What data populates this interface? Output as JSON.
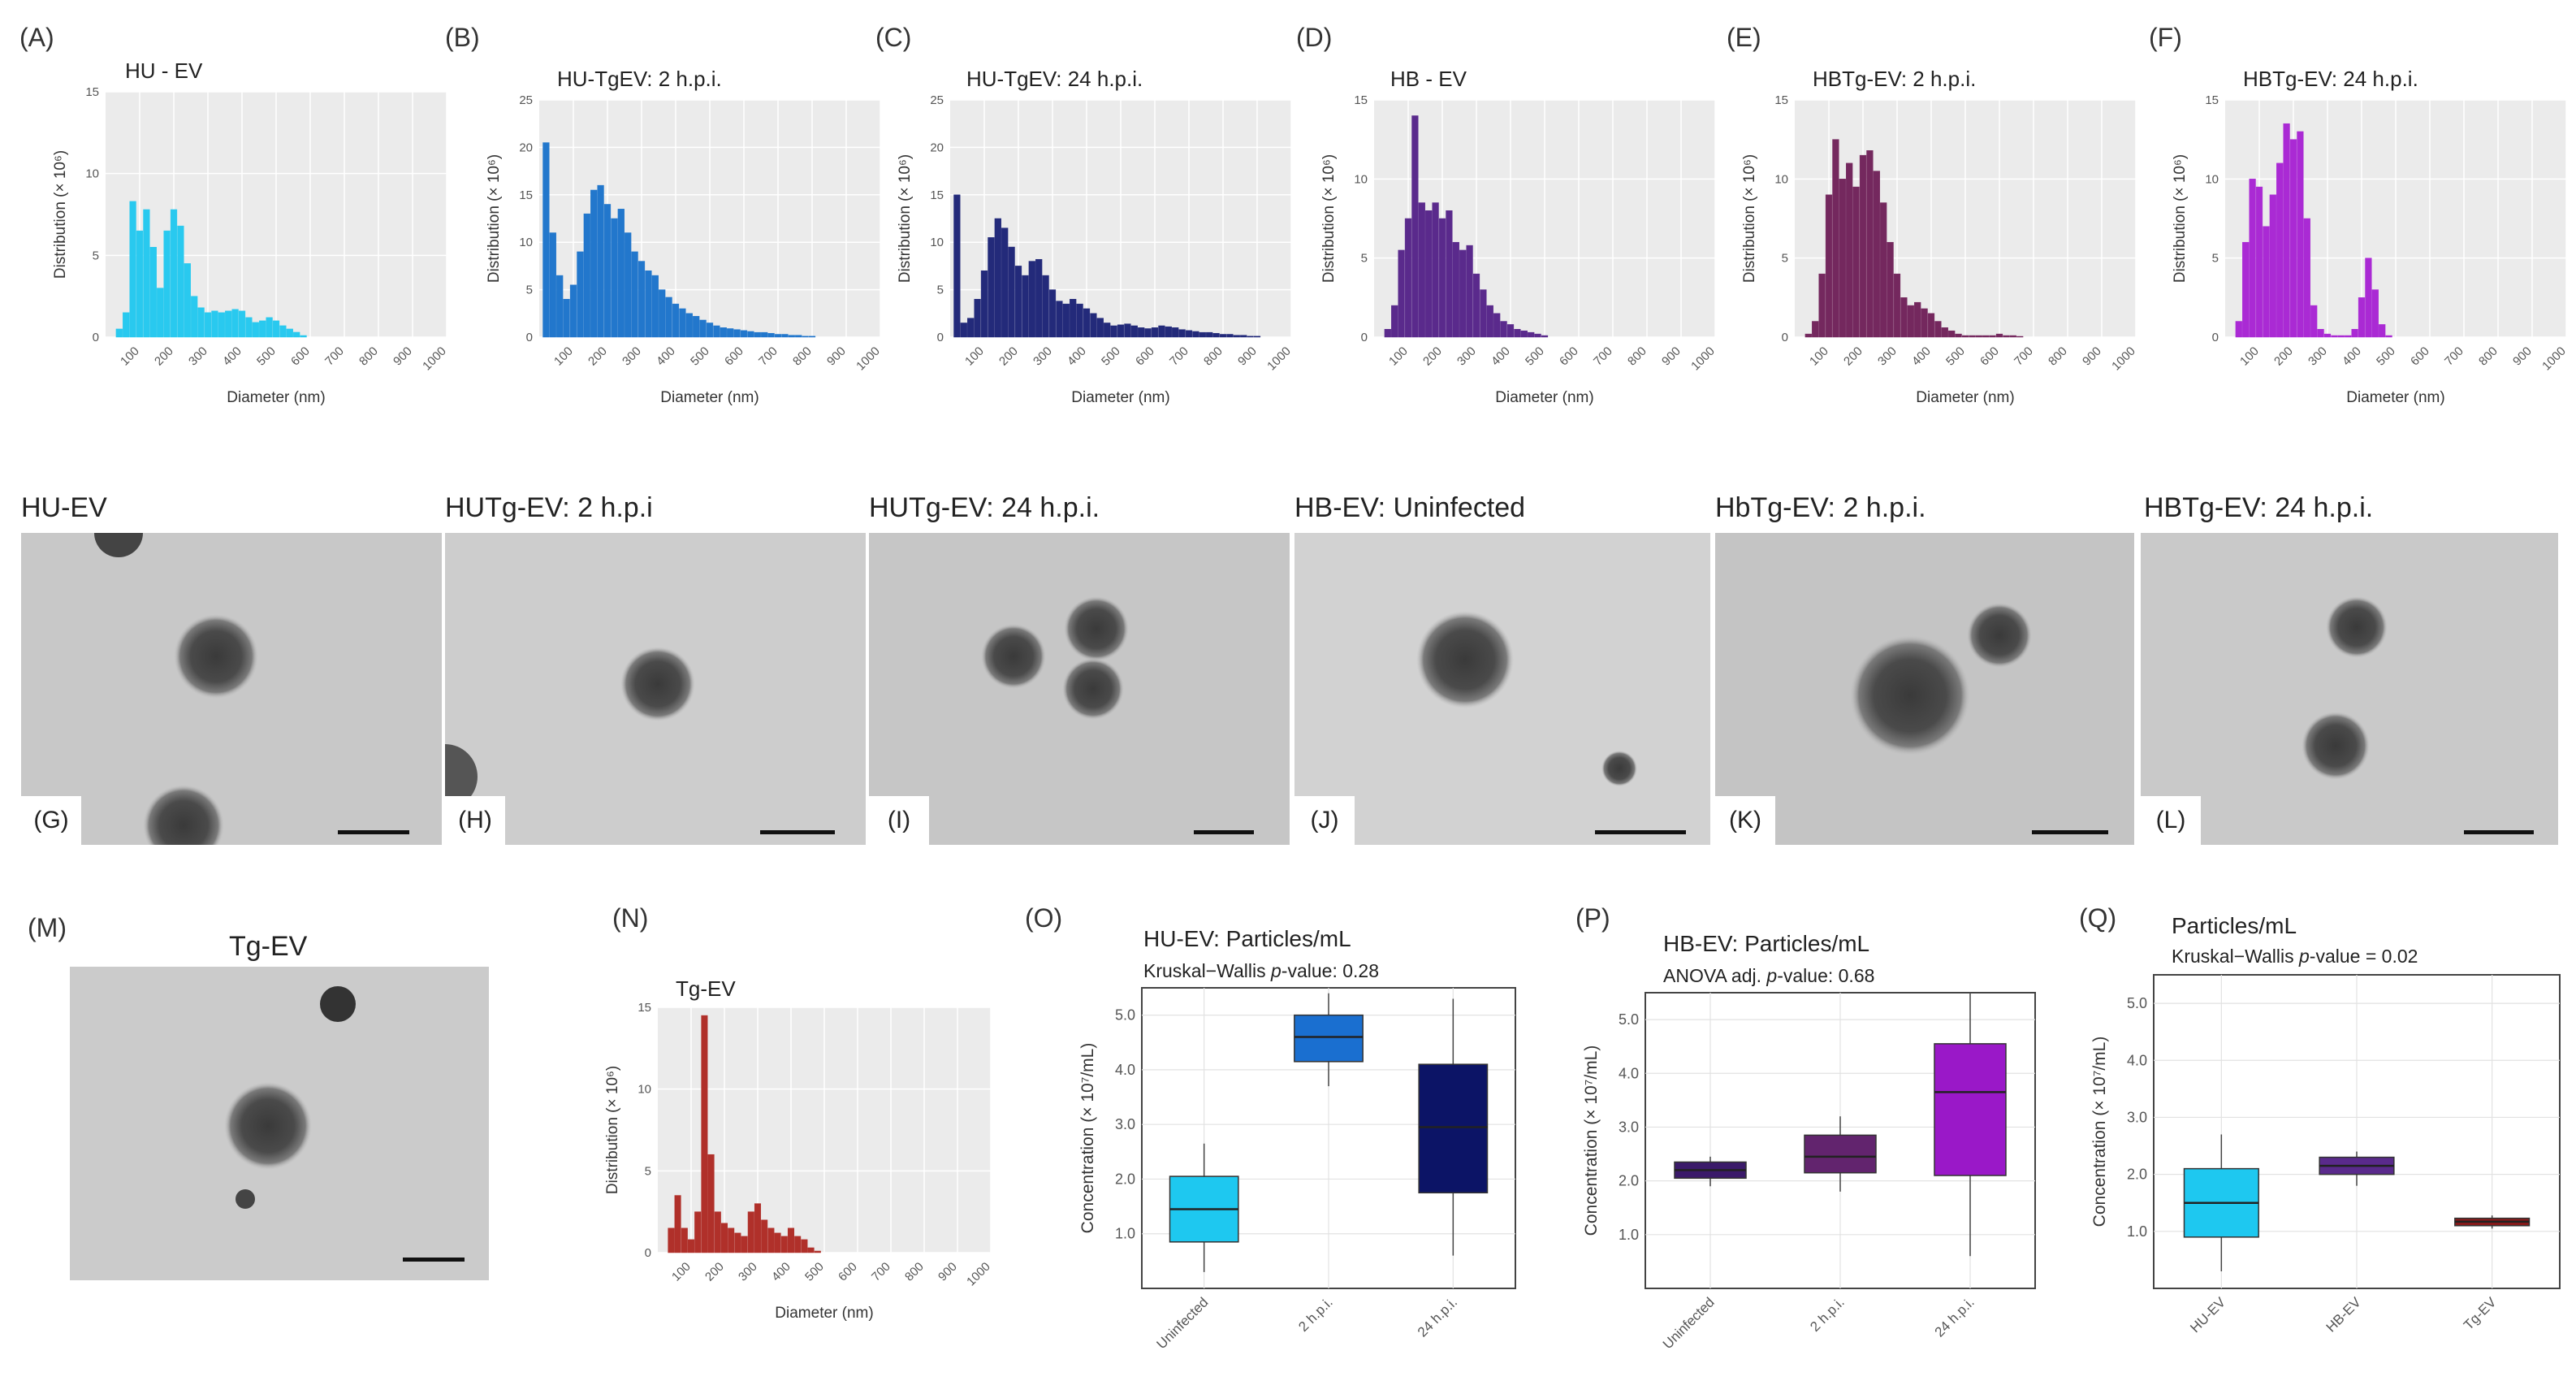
{
  "panel_labels": [
    "(A)",
    "(B)",
    "(C)",
    "(D)",
    "(E)",
    "(F)",
    "(G)",
    "(H)",
    "(I)",
    "(J)",
    "(K)",
    "(L)",
    "(M)",
    "(N)",
    "(O)",
    "(P)",
    "(Q)"
  ],
  "em_titles": [
    "HU-EV",
    "HUTg-EV: 2 h.p.i",
    "HUTg-EV: 24 h.p.i.",
    "HB-EV: Uninfected",
    "HbTg-EV: 2 h.p.i.",
    "HBTg-EV: 24 h.p.i."
  ],
  "tg_em_title": "Tg-EV",
  "chart_data": [
    {
      "type": "bar",
      "title": "HU - EV",
      "xlabel": "Diameter (nm)",
      "ylabel": "Distribution (× 10⁶)",
      "ylim": [
        0,
        15
      ],
      "yticks": [
        0,
        5,
        10,
        15
      ],
      "xlim": [
        0,
        1000
      ],
      "xticks": [
        100,
        200,
        300,
        400,
        500,
        600,
        700,
        800,
        900,
        1000
      ],
      "color": "#29c9ef",
      "x": [
        40,
        60,
        80,
        100,
        120,
        140,
        160,
        180,
        200,
        220,
        240,
        260,
        280,
        300,
        320,
        340,
        360,
        380,
        400,
        420,
        440,
        460,
        480,
        500,
        520,
        540,
        560,
        580
      ],
      "values": [
        0.5,
        1.5,
        8.3,
        6.5,
        7.8,
        5.5,
        3.0,
        6.5,
        7.8,
        6.8,
        4.5,
        2.5,
        1.8,
        1.5,
        1.6,
        1.5,
        1.6,
        1.7,
        1.6,
        1.2,
        0.9,
        1.0,
        1.2,
        1.0,
        0.7,
        0.5,
        0.3,
        0.1
      ]
    },
    {
      "type": "bar",
      "title": "HU-TgEV: 2 h.p.i.",
      "xlabel": "Diameter (nm)",
      "ylabel": "Distribution (× 10⁶)",
      "ylim": [
        0,
        25
      ],
      "yticks": [
        0,
        5,
        10,
        15,
        20,
        25
      ],
      "xlim": [
        0,
        1000
      ],
      "xticks": [
        100,
        200,
        300,
        400,
        500,
        600,
        700,
        800,
        900,
        1000
      ],
      "color": "#2277cc",
      "x": [
        20,
        40,
        60,
        80,
        100,
        120,
        140,
        160,
        180,
        200,
        220,
        240,
        260,
        280,
        300,
        320,
        340,
        360,
        380,
        400,
        420,
        440,
        460,
        480,
        500,
        520,
        540,
        560,
        580,
        600,
        620,
        640,
        660,
        680,
        700,
        720,
        740,
        760,
        780,
        800
      ],
      "values": [
        20.5,
        11.0,
        6.5,
        4.0,
        5.5,
        9.0,
        13.0,
        15.5,
        16.0,
        14.0,
        12.5,
        13.5,
        11.0,
        9.0,
        8.0,
        7.0,
        6.5,
        5.0,
        4.2,
        3.5,
        3.0,
        2.5,
        2.2,
        1.8,
        1.5,
        1.2,
        1.0,
        0.9,
        0.8,
        0.7,
        0.6,
        0.5,
        0.5,
        0.4,
        0.3,
        0.3,
        0.2,
        0.2,
        0.1,
        0.1
      ]
    },
    {
      "type": "bar",
      "title": "HU-TgEV: 24 h.p.i.",
      "xlabel": "Diameter (nm)",
      "ylabel": "Distribution (× 10⁶)",
      "ylim": [
        0,
        25
      ],
      "yticks": [
        0,
        5,
        10,
        15,
        20,
        25
      ],
      "xlim": [
        0,
        1000
      ],
      "xticks": [
        100,
        200,
        300,
        400,
        500,
        600,
        700,
        800,
        900,
        1000
      ],
      "color": "#232a7a",
      "x": [
        20,
        40,
        60,
        80,
        100,
        120,
        140,
        160,
        180,
        200,
        220,
        240,
        260,
        280,
        300,
        320,
        340,
        360,
        380,
        400,
        420,
        440,
        460,
        480,
        500,
        520,
        540,
        560,
        580,
        600,
        620,
        640,
        660,
        680,
        700,
        720,
        740,
        760,
        780,
        800,
        820,
        840,
        860,
        880,
        900
      ],
      "values": [
        15.0,
        1.5,
        2.0,
        4.0,
        7.0,
        10.5,
        12.5,
        11.5,
        9.5,
        7.5,
        6.5,
        8.0,
        8.2,
        6.5,
        5.0,
        3.8,
        3.5,
        4.0,
        3.5,
        3.0,
        2.5,
        2.0,
        1.5,
        1.2,
        1.3,
        1.4,
        1.2,
        1.0,
        0.9,
        1.0,
        1.2,
        1.1,
        1.0,
        0.8,
        0.7,
        0.6,
        0.5,
        0.5,
        0.4,
        0.3,
        0.3,
        0.2,
        0.2,
        0.1,
        0.1
      ]
    },
    {
      "type": "bar",
      "title": "HB - EV",
      "xlabel": "Diameter (nm)",
      "ylabel": "Distribution (× 10⁶)",
      "ylim": [
        0,
        15
      ],
      "yticks": [
        0,
        5,
        10,
        15
      ],
      "xlim": [
        0,
        1000
      ],
      "xticks": [
        100,
        200,
        300,
        400,
        500,
        600,
        700,
        800,
        900,
        1000
      ],
      "color": "#5a2a8c",
      "x": [
        40,
        60,
        80,
        100,
        120,
        140,
        160,
        180,
        200,
        220,
        240,
        260,
        280,
        300,
        320,
        340,
        360,
        380,
        400,
        420,
        440,
        460,
        480,
        500
      ],
      "values": [
        0.5,
        2.0,
        5.5,
        7.5,
        14.0,
        8.5,
        8.0,
        8.5,
        7.5,
        8.0,
        6.0,
        5.5,
        5.8,
        4.0,
        3.0,
        2.0,
        1.5,
        1.0,
        0.8,
        0.5,
        0.4,
        0.3,
        0.2,
        0.1
      ]
    },
    {
      "type": "bar",
      "title": "HBTg-EV: 2 h.p.i.",
      "xlabel": "Diameter (nm)",
      "ylabel": "Distribution (× 10⁶)",
      "ylim": [
        0,
        15
      ],
      "yticks": [
        0,
        5,
        10,
        15
      ],
      "xlim": [
        0,
        1000
      ],
      "xticks": [
        100,
        200,
        300,
        400,
        500,
        600,
        700,
        800,
        900,
        1000
      ],
      "color": "#74285e",
      "x": [
        40,
        60,
        80,
        100,
        120,
        140,
        160,
        180,
        200,
        220,
        240,
        260,
        280,
        300,
        320,
        340,
        360,
        380,
        400,
        420,
        440,
        460,
        480,
        500,
        520,
        540,
        560,
        580,
        600,
        620,
        640,
        660
      ],
      "values": [
        0.2,
        1.0,
        4.0,
        9.0,
        12.5,
        10.0,
        11.0,
        9.5,
        11.5,
        11.8,
        10.5,
        8.5,
        6.0,
        4.0,
        2.5,
        2.0,
        2.2,
        1.8,
        1.5,
        1.0,
        0.6,
        0.4,
        0.2,
        0.1,
        0.1,
        0.1,
        0.1,
        0.1,
        0.2,
        0.1,
        0.1,
        0.05
      ]
    },
    {
      "type": "bar",
      "title": "HBTg-EV: 24 h.p.i.",
      "xlabel": "Diameter (nm)",
      "ylabel": "Distribution (× 10⁶)",
      "ylim": [
        0,
        15
      ],
      "yticks": [
        0,
        5,
        10,
        15
      ],
      "xlim": [
        0,
        1000
      ],
      "xticks": [
        100,
        200,
        300,
        400,
        500,
        600,
        700,
        800,
        900,
        1000
      ],
      "color": "#aa2ad4",
      "x": [
        40,
        60,
        80,
        100,
        120,
        140,
        160,
        180,
        200,
        220,
        240,
        260,
        280,
        300,
        320,
        340,
        360,
        380,
        400,
        420,
        440,
        460,
        480
      ],
      "values": [
        1.0,
        6.0,
        10.0,
        9.5,
        7.0,
        9.0,
        11.0,
        13.5,
        12.5,
        13.0,
        7.5,
        2.0,
        0.5,
        0.2,
        0.1,
        0.1,
        0.1,
        0.5,
        2.5,
        5.0,
        3.0,
        0.8,
        0.1
      ]
    },
    {
      "type": "bar",
      "title": "Tg-EV",
      "xlabel": "Diameter (nm)",
      "ylabel": "Distribution (× 10⁶)",
      "ylim": [
        0,
        15
      ],
      "yticks": [
        0,
        5,
        10,
        15
      ],
      "xlim": [
        0,
        1000
      ],
      "xticks": [
        100,
        200,
        300,
        400,
        500,
        600,
        700,
        800,
        900,
        1000
      ],
      "color": "#b0302a",
      "x": [
        40,
        60,
        80,
        100,
        120,
        140,
        160,
        180,
        200,
        220,
        240,
        260,
        280,
        300,
        320,
        340,
        360,
        380,
        400,
        420,
        440,
        460,
        480
      ],
      "values": [
        1.5,
        3.5,
        1.5,
        0.8,
        2.5,
        14.5,
        6.0,
        2.5,
        1.8,
        1.5,
        1.2,
        1.0,
        2.5,
        3.0,
        2.0,
        1.5,
        1.2,
        1.0,
        1.5,
        1.0,
        0.8,
        0.3,
        0.1
      ]
    },
    {
      "type": "box",
      "title": "HU-EV: Particles/mL",
      "subtitle_prefix": "Kruskal−Wallis ",
      "subtitle_em": "p",
      "subtitle_suffix": "-value: 0.28",
      "ylabel": "Concentration (× 10⁷/mL)",
      "ylim": [
        0,
        5.5
      ],
      "yticks": [
        1.0,
        2.0,
        3.0,
        4.0,
        5.0
      ],
      "ytick_labels": [
        "1.0",
        "2.0",
        "3.0",
        "4.0",
        "5.0"
      ],
      "categories": [
        "Uninfected",
        "2 h.p.i.",
        "24 h.p.i."
      ],
      "boxes": [
        {
          "min": 0.3,
          "q1": 0.85,
          "median": 1.45,
          "q3": 2.05,
          "max": 2.65,
          "color": "#1ec8f0"
        },
        {
          "min": 3.7,
          "q1": 4.15,
          "median": 4.6,
          "q3": 5.0,
          "max": 5.4,
          "color": "#1a6fd0"
        },
        {
          "min": 0.6,
          "q1": 1.75,
          "median": 2.95,
          "q3": 4.1,
          "max": 5.3,
          "color": "#0c1466"
        }
      ]
    },
    {
      "type": "box",
      "title": "HB-EV: Particles/mL",
      "subtitle_prefix": "ANOVA adj. ",
      "subtitle_em": "p",
      "subtitle_suffix": "-value: 0.68",
      "ylabel": "Concentration (× 10⁷/mL)",
      "ylim": [
        0,
        5.5
      ],
      "yticks": [
        1.0,
        2.0,
        3.0,
        4.0,
        5.0
      ],
      "ytick_labels": [
        "1.0",
        "2.0",
        "3.0",
        "4.0",
        "5.0"
      ],
      "categories": [
        "Uninfected",
        "2 h.p.i.",
        "24 h.p.i."
      ],
      "boxes": [
        {
          "min": 1.9,
          "q1": 2.05,
          "median": 2.2,
          "q3": 2.35,
          "max": 2.45,
          "color": "#3b1a6a"
        },
        {
          "min": 1.8,
          "q1": 2.15,
          "median": 2.45,
          "q3": 2.85,
          "max": 3.2,
          "color": "#62246e"
        },
        {
          "min": 0.6,
          "q1": 2.1,
          "median": 3.65,
          "q3": 4.55,
          "max": 5.5,
          "color": "#9a18c8"
        }
      ]
    },
    {
      "type": "box",
      "title": "Particles/mL",
      "subtitle_prefix": "Kruskal−Wallis ",
      "subtitle_em": "p",
      "subtitle_suffix": "-value = 0.02",
      "ylabel": "Concentration (× 10⁷/mL)",
      "ylim": [
        0,
        5.5
      ],
      "yticks": [
        1.0,
        2.0,
        3.0,
        4.0,
        5.0
      ],
      "ytick_labels": [
        "1.0",
        "2.0",
        "3.0",
        "4.0",
        "5.0"
      ],
      "categories": [
        "HU-EV",
        "HB-EV",
        "Tg-EV"
      ],
      "boxes": [
        {
          "min": 0.3,
          "q1": 0.9,
          "median": 1.5,
          "q3": 2.1,
          "max": 2.7,
          "color": "#1ec8f0"
        },
        {
          "min": 1.8,
          "q1": 2.0,
          "median": 2.15,
          "q3": 2.3,
          "max": 2.4,
          "color": "#5a2a8c"
        },
        {
          "min": 1.05,
          "q1": 1.1,
          "median": 1.17,
          "q3": 1.23,
          "max": 1.28,
          "color": "#8a1a1a"
        }
      ]
    }
  ]
}
